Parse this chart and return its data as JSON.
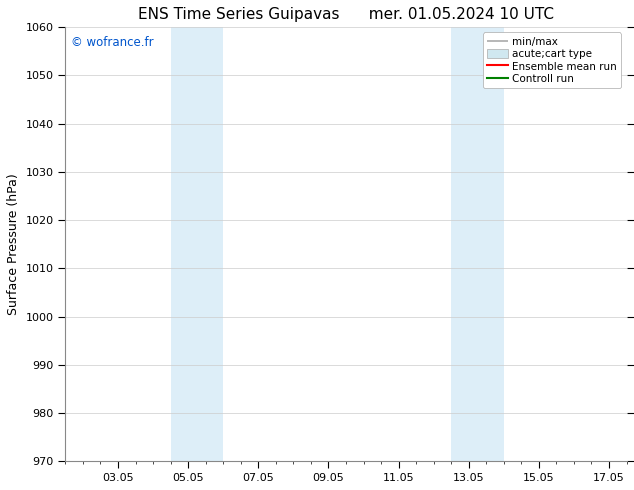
{
  "title_left": "ENS Time Series Guipavas",
  "title_right": "mer. 01.05.2024 10 UTC",
  "ylabel": "Surface Pressure (hPa)",
  "ylim": [
    970,
    1060
  ],
  "yticks": [
    970,
    980,
    990,
    1000,
    1010,
    1020,
    1030,
    1040,
    1050,
    1060
  ],
  "xtick_labels": [
    "03.05",
    "05.05",
    "07.05",
    "09.05",
    "11.05",
    "13.05",
    "15.05",
    "17.05"
  ],
  "xtick_positions": [
    2,
    4,
    6,
    8,
    10,
    12,
    14,
    16
  ],
  "xmin": 0.5,
  "xmax": 16.5,
  "shaded_bands": [
    {
      "xmin": 3.5,
      "xmax": 5.0,
      "color": "#ddeef8"
    },
    {
      "xmin": 11.5,
      "xmax": 13.0,
      "color": "#ddeef8"
    }
  ],
  "legend_entries": [
    {
      "label": "min/max",
      "type": "errorbar",
      "color": "#aaaaaa"
    },
    {
      "label": "acute;cart type",
      "type": "fill",
      "color": "#cccccc"
    },
    {
      "label": "Ensemble mean run",
      "type": "line",
      "color": "#ff0000"
    },
    {
      "label": "Controll run",
      "type": "line",
      "color": "#008000"
    }
  ],
  "watermark": "© wofrance.fr",
  "watermark_color": "#0055cc",
  "background_color": "#ffffff",
  "plot_bg_color": "#ffffff",
  "grid_color": "#cccccc",
  "tick_label_fontsize": 8,
  "axis_label_fontsize": 9,
  "title_fontsize": 11
}
